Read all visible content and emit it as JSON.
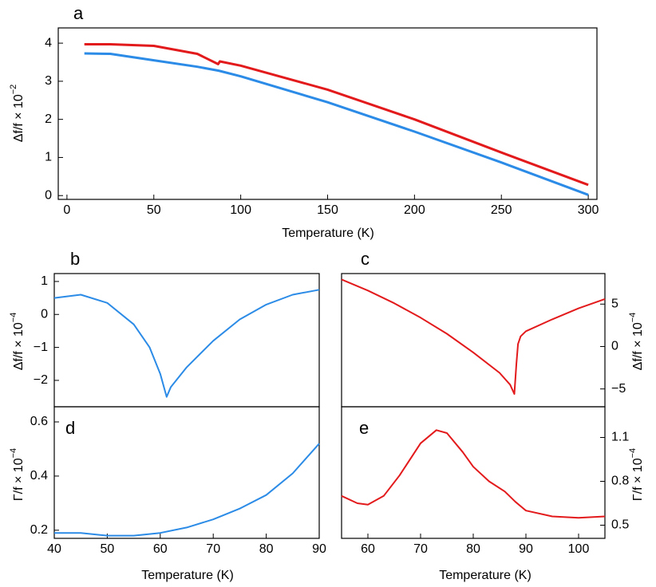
{
  "chart_data": [
    {
      "type": "line",
      "label": "a",
      "xlabel": "Temperature (K)",
      "ylabel": "Δf/f × 10",
      "ylabel_sup": "−2",
      "x": [
        10,
        25,
        50,
        75,
        87,
        88,
        100,
        150,
        200,
        250,
        300
      ],
      "series": [
        {
          "color": "#e31a1c",
          "values": [
            3.97,
            3.97,
            3.93,
            3.72,
            3.45,
            3.52,
            3.41,
            2.78,
            2.0,
            1.13,
            0.28
          ]
        },
        {
          "color": "#2b8be6",
          "values": [
            3.73,
            3.72,
            3.55,
            3.38,
            3.28,
            3.27,
            3.13,
            2.45,
            1.68,
            0.87,
            0.02
          ]
        }
      ],
      "xlim": [
        -5,
        305
      ],
      "xticks": [
        0,
        50,
        100,
        150,
        200,
        250,
        300
      ],
      "ylim": [
        -0.1,
        4.4
      ],
      "yticks": [
        0,
        1,
        2,
        3,
        4
      ],
      "yaxis_side": "left"
    },
    {
      "type": "line",
      "label": "b",
      "ylabel": "Δf/f × 10",
      "ylabel_sup": "−4",
      "x": [
        40,
        45,
        50,
        55,
        58,
        60,
        61.2,
        62,
        65,
        70,
        75,
        80,
        85,
        90
      ],
      "series": [
        {
          "color": "#2b8be6",
          "values": [
            0.5,
            0.6,
            0.35,
            -0.3,
            -1.0,
            -1.8,
            -2.5,
            -2.2,
            -1.6,
            -0.8,
            -0.15,
            0.3,
            0.6,
            0.75
          ]
        }
      ],
      "xlim": [
        40,
        90
      ],
      "ylim": [
        -2.8,
        1.24
      ],
      "yticks": [
        {
          "value": -2,
          "label": "−2"
        },
        {
          "value": -1,
          "label": "−1"
        },
        0,
        1
      ],
      "yaxis_side": "left"
    },
    {
      "type": "line",
      "label": "c",
      "ylabel": "Δf/f × 10",
      "ylabel_sup": "−4",
      "x": [
        55,
        60,
        65,
        70,
        75,
        80,
        85,
        87,
        87.8,
        88.2,
        88.5,
        89,
        90,
        95,
        100,
        105
      ],
      "series": [
        {
          "color": "#e31a1c",
          "values": [
            7.9,
            6.6,
            5.1,
            3.4,
            1.5,
            -0.7,
            -3.1,
            -4.5,
            -5.6,
            -2,
            0.3,
            1.2,
            1.8,
            3.2,
            4.5,
            5.6
          ]
        }
      ],
      "xlim": [
        55,
        105
      ],
      "ylim": [
        -7.1,
        8.6
      ],
      "yticks": [
        {
          "value": -5,
          "label": "−5"
        },
        0,
        5
      ],
      "yaxis_side": "right"
    },
    {
      "type": "line",
      "label": "d",
      "xlabel": "Temperature (K)",
      "ylabel": "Γ/f × 10",
      "ylabel_sup": "−4",
      "x": [
        40,
        45,
        50,
        55,
        60,
        65,
        70,
        75,
        80,
        85,
        90
      ],
      "series": [
        {
          "color": "#2b8be6",
          "values": [
            0.19,
            0.19,
            0.18,
            0.18,
            0.19,
            0.21,
            0.24,
            0.28,
            0.33,
            0.41,
            0.52
          ]
        }
      ],
      "xlim": [
        40,
        90
      ],
      "xticks": [
        40,
        50,
        60,
        70,
        80,
        90
      ],
      "ylim": [
        0.17,
        0.656
      ],
      "yticks": [
        0.2,
        0.4,
        0.6
      ],
      "yaxis_side": "left"
    },
    {
      "type": "line",
      "label": "e",
      "xlabel": "Temperature (K)",
      "ylabel": "Γ/f × 10",
      "ylabel_sup": "−4",
      "x": [
        55,
        58,
        60,
        63,
        66,
        70,
        73,
        75,
        78,
        80,
        83,
        86,
        88,
        90,
        95,
        100,
        105
      ],
      "series": [
        {
          "color": "#e31a1c",
          "values": [
            0.7,
            0.65,
            0.64,
            0.7,
            0.84,
            1.06,
            1.15,
            1.13,
            1.0,
            0.9,
            0.8,
            0.73,
            0.66,
            0.6,
            0.56,
            0.55,
            0.56
          ]
        }
      ],
      "xlim": [
        55,
        105
      ],
      "xticks": [
        60,
        70,
        80,
        90,
        100
      ],
      "ylim": [
        0.41,
        1.31
      ],
      "yticks": [
        0.5,
        0.8,
        1.1
      ],
      "yaxis_side": "right"
    }
  ]
}
